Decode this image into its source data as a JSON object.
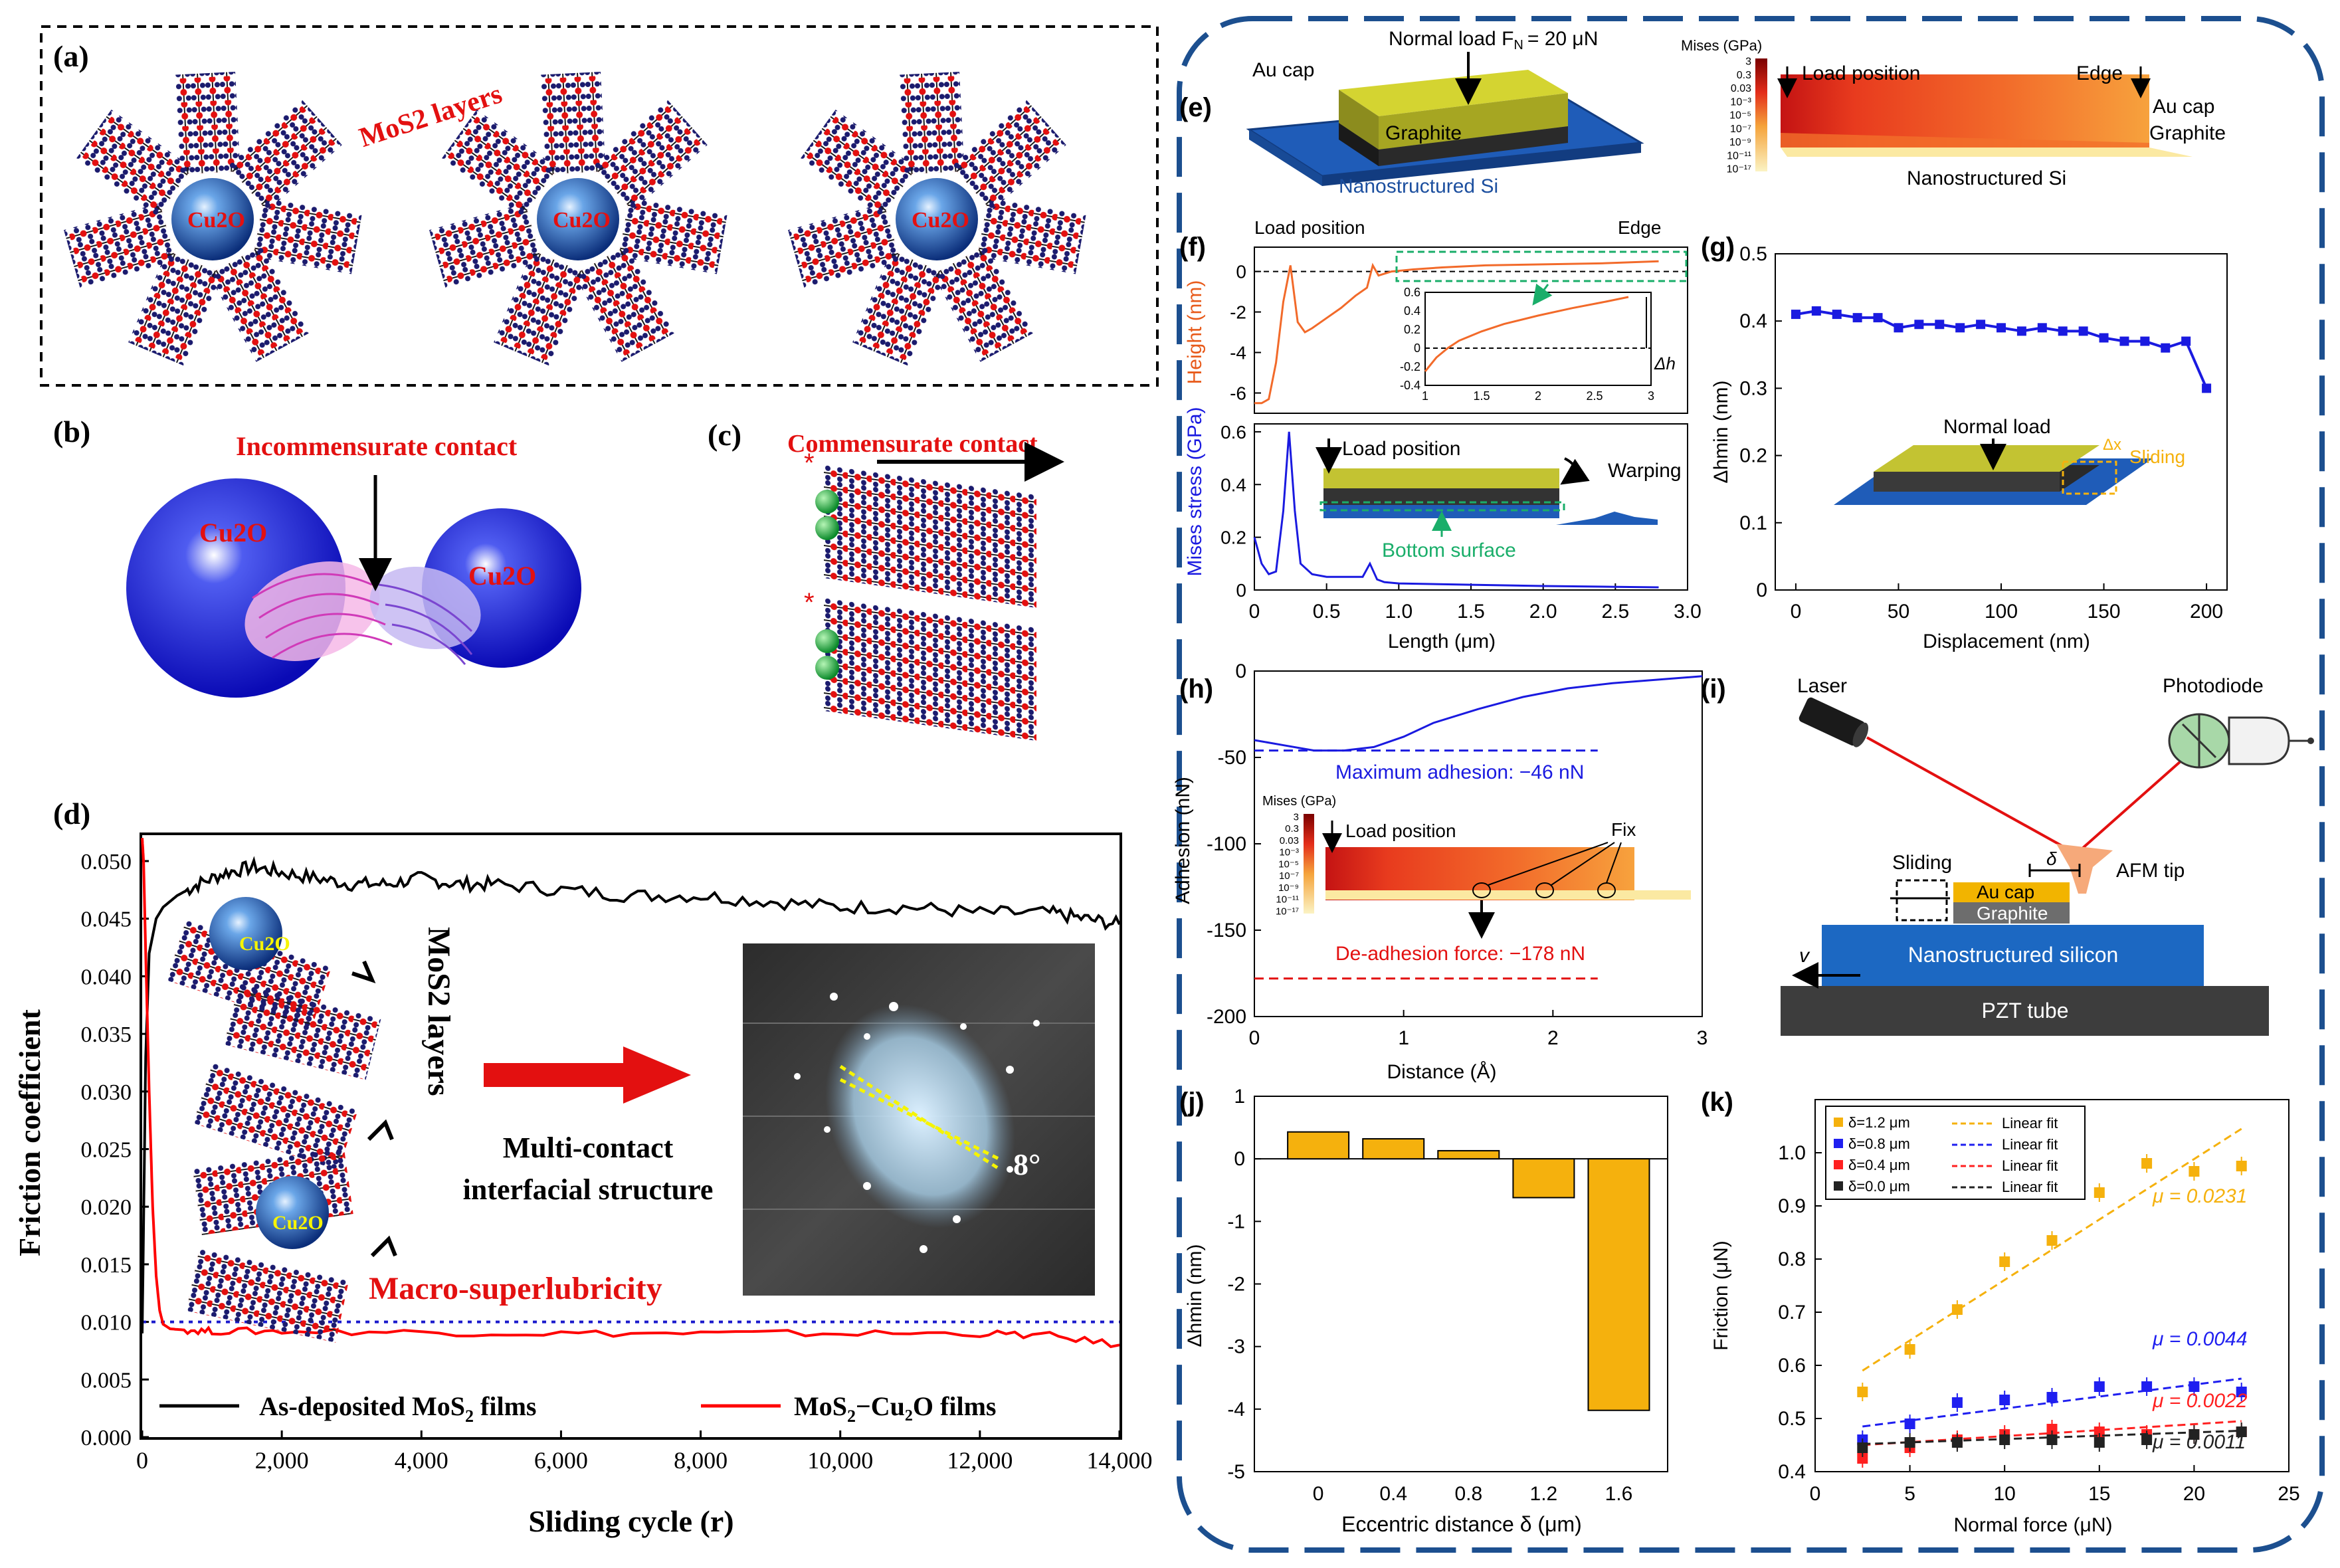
{
  "panel_a": {
    "label": "(a)",
    "mos2_label": "MoS2 layers",
    "cu2o_label": "Cu2O"
  },
  "panel_b": {
    "label": "(b)",
    "title": "Incommensurate contact",
    "cu2o_label": "Cu2O"
  },
  "panel_c": {
    "label": "(c)",
    "title": "Commensurate contact"
  },
  "panel_d": {
    "label": "(d)",
    "mos2_layers_label": "MoS2 layers",
    "cu2o_label": "Cu2O",
    "structure_label_1": "Multi-contact",
    "structure_label_2": "interfacial structure",
    "angle_label": "8°",
    "superlubricity_label": "Macro-superlubricity",
    "colors": {
      "black_series": "#000000",
      "red_series": "#ff0000",
      "ref_line": "#1a1acc",
      "arrow": "#cc0000"
    }
  },
  "panel_e": {
    "label": "(e)",
    "normal_load": "Normal load F",
    "normal_load_sub": "N",
    "normal_load_value": "= 20 μN",
    "au_cap": "Au cap",
    "graphite": "Graphite",
    "substrate": "Nanostructured Si",
    "mises_title": "Mises (GPa)",
    "colorbar_ticks": [
      "3",
      "0.3",
      "0.03",
      "10⁻³",
      "10⁻⁵",
      "10⁻⁷",
      "10⁻⁹",
      "10⁻¹¹",
      "10⁻¹⁷"
    ],
    "load_position": "Load position",
    "edge": "Edge",
    "au_cap_map": "Au cap",
    "graphite_map": "Graphite",
    "substrate_map": "Nanostructured Si"
  },
  "panel_f": {
    "label": "(f)",
    "load_position": "Load position",
    "edge": "Edge",
    "dh_label": "Δh",
    "load_position_inset": "Load position",
    "warping": "Warping",
    "bottom_surface": "Bottom surface"
  },
  "panel_g": {
    "label": "(g)",
    "normal_load": "Normal load",
    "dx": "Δx",
    "sliding": "Sliding"
  },
  "panel_h": {
    "label": "(h)",
    "max_adhesion": "Maximum adhesion: −46 nN",
    "deadhesion": "De-adhesion force: −178 nN",
    "mises_title": "Mises (GPa)",
    "colorbar_ticks": [
      "3",
      "0.3",
      "0.03",
      "10⁻³",
      "10⁻⁵",
      "10⁻⁷",
      "10⁻⁹",
      "10⁻¹¹",
      "10⁻¹⁷"
    ],
    "load_position": "Load position",
    "fix": "Fix"
  },
  "panel_i": {
    "label": "(i)",
    "laser": "Laser",
    "photodiode": "Photodiode",
    "afm_tip": "AFM tip",
    "sliding": "Sliding",
    "delta": "δ",
    "au_cap": "Au cap",
    "graphite": "Graphite",
    "v": "v",
    "substrate": "Nanostructured silicon",
    "pzt": "PZT tube"
  },
  "panel_j": {
    "label": "(j)"
  },
  "panel_k": {
    "label": "(k)",
    "legend_fit": "Linear fit",
    "mu_labels": [
      "μ = 0.0231",
      "μ = 0.0044",
      "μ = 0.0022",
      "μ = 0.0011"
    ]
  },
  "chart_data": [
    {
      "id": "d",
      "type": "line",
      "xlabel": "Sliding cycle (r)",
      "ylabel": "Friction coefficient",
      "xlim": [
        0,
        14000
      ],
      "ylim": [
        0,
        0.05
      ],
      "xticks": [
        "0",
        "2,000",
        "4,000",
        "6,000",
        "8,000",
        "10,000",
        "12,000",
        "14,000"
      ],
      "yticks": [
        "0.000",
        "0.005",
        "0.010",
        "0.015",
        "0.020",
        "0.025",
        "0.030",
        "0.035",
        "0.040",
        "0.045",
        "0.050"
      ],
      "series": [
        {
          "name": "As-deposited MoS2 films",
          "legend_main": "As-deposited MoS",
          "legend_sub": "2",
          "legend_rest": " films",
          "color": "#000000",
          "x": [
            0,
            50,
            100,
            200,
            300,
            500,
            800,
            1200,
            1600,
            2000,
            2500,
            3000,
            3500,
            4000,
            4500,
            5000,
            6000,
            7000,
            8000,
            9000,
            10000,
            11000,
            12000,
            13000,
            13500,
            14000
          ],
          "y": [
            0.009,
            0.033,
            0.042,
            0.045,
            0.046,
            0.047,
            0.048,
            0.049,
            0.0495,
            0.049,
            0.0485,
            0.048,
            0.048,
            0.0485,
            0.048,
            0.048,
            0.0475,
            0.047,
            0.047,
            0.0465,
            0.046,
            0.046,
            0.0455,
            0.0455,
            0.045,
            0.0445
          ]
        },
        {
          "name": "MoS2–Cu2O films",
          "legend_main": "MoS",
          "legend_sub": "2",
          "legend_rest": "−Cu₂O films",
          "color": "#ff0000",
          "x": [
            0,
            20,
            50,
            100,
            150,
            200,
            250,
            300,
            400,
            600,
            1000,
            2000,
            4000,
            6000,
            8000,
            10000,
            12000,
            13000,
            14000
          ],
          "y": [
            0.052,
            0.05,
            0.042,
            0.03,
            0.02,
            0.014,
            0.011,
            0.0098,
            0.0094,
            0.0093,
            0.0092,
            0.0092,
            0.0091,
            0.009,
            0.009,
            0.009,
            0.009,
            0.0088,
            0.008
          ]
        }
      ],
      "reference_line": 0.01
    },
    {
      "id": "f_height",
      "type": "line",
      "ylabel": "Height (nm)",
      "xlim": [
        0,
        3
      ],
      "ylim": [
        -7,
        1.2
      ],
      "yticks": [
        "0",
        "-2",
        "-4",
        "-6"
      ],
      "x": [
        0,
        0.05,
        0.1,
        0.15,
        0.2,
        0.25,
        0.3,
        0.35,
        0.4,
        0.5,
        0.6,
        0.7,
        0.78,
        0.82,
        0.86,
        0.95,
        1.1,
        1.3,
        1.6,
        2.0,
        2.4,
        2.8
      ],
      "y": [
        -6.5,
        -6.5,
        -6.3,
        -4.5,
        -1.5,
        0.3,
        -2.5,
        -3.0,
        -2.8,
        -2.3,
        -1.8,
        -1.2,
        -0.8,
        0.3,
        -0.2,
        0.0,
        0.1,
        0.2,
        0.3,
        0.35,
        0.4,
        0.5
      ]
    },
    {
      "id": "f_height_inset",
      "type": "line",
      "xlim": [
        1,
        3
      ],
      "ylim": [
        -0.4,
        0.6
      ],
      "xticks": [
        "1",
        "1.5",
        "2",
        "2.5",
        "3"
      ],
      "yticks": [
        "0.6",
        "0.4",
        "0.2",
        "0",
        "-0.2",
        "-0.4"
      ],
      "x": [
        1.0,
        1.1,
        1.2,
        1.3,
        1.5,
        1.7,
        2.0,
        2.3,
        2.6,
        2.8
      ],
      "y": [
        -0.25,
        -0.1,
        0.0,
        0.08,
        0.18,
        0.26,
        0.35,
        0.43,
        0.5,
        0.55
      ]
    },
    {
      "id": "f_stress",
      "type": "line",
      "xlabel": "Length (μm)",
      "ylabel": "Mises stress (GPa)",
      "xlim": [
        0,
        3
      ],
      "ylim": [
        0,
        0.63
      ],
      "xticks": [
        "0",
        "0.5",
        "1.0",
        "1.5",
        "2.0",
        "2.5",
        "3.0"
      ],
      "yticks": [
        "0",
        "0.2",
        "0.4",
        "0.6"
      ],
      "x": [
        0,
        0.05,
        0.1,
        0.15,
        0.2,
        0.24,
        0.28,
        0.32,
        0.4,
        0.5,
        0.6,
        0.75,
        0.8,
        0.85,
        0.9,
        1.0,
        1.5,
        2.0,
        2.5,
        2.8
      ],
      "y": [
        0.2,
        0.1,
        0.06,
        0.07,
        0.3,
        0.6,
        0.3,
        0.1,
        0.06,
        0.05,
        0.05,
        0.05,
        0.1,
        0.04,
        0.03,
        0.025,
        0.02,
        0.015,
        0.012,
        0.01
      ]
    },
    {
      "id": "g",
      "type": "line",
      "xlabel": "Displacement (nm)",
      "ylabel": "Δhmin (nm)",
      "xlim": [
        -10,
        210
      ],
      "ylim": [
        0,
        0.5
      ],
      "xticks": [
        "0",
        "50",
        "100",
        "150",
        "200"
      ],
      "yticks": [
        "0",
        "0.1",
        "0.2",
        "0.3",
        "0.4",
        "0.5"
      ],
      "x": [
        0,
        10,
        20,
        30,
        40,
        50,
        60,
        70,
        80,
        90,
        100,
        110,
        120,
        130,
        140,
        150,
        160,
        170,
        180,
        190,
        200
      ],
      "y": [
        0.41,
        0.415,
        0.41,
        0.405,
        0.405,
        0.39,
        0.395,
        0.395,
        0.39,
        0.395,
        0.39,
        0.385,
        0.39,
        0.385,
        0.385,
        0.375,
        0.37,
        0.37,
        0.36,
        0.37,
        0.3
      ]
    },
    {
      "id": "h",
      "type": "line",
      "xlabel": "Distance (Å)",
      "ylabel": "Adhesion (nN)",
      "xlim": [
        0,
        3
      ],
      "ylim": [
        -200,
        0
      ],
      "xticks": [
        "0",
        "1",
        "2",
        "3"
      ],
      "yticks": [
        "0",
        "-50",
        "-100",
        "-150",
        "-200"
      ],
      "x": [
        0,
        0.2,
        0.4,
        0.6,
        0.8,
        1.0,
        1.2,
        1.5,
        1.8,
        2.1,
        2.4,
        2.7,
        3.0
      ],
      "y": [
        -40,
        -43,
        -46,
        -46,
        -44,
        -38,
        -30,
        -22,
        -15,
        -10,
        -7,
        -5,
        -3
      ],
      "max_adhesion": -46,
      "deadhesion_force": -178
    },
    {
      "id": "j",
      "type": "bar",
      "xlabel": "Eccentric distance δ (μm)",
      "ylabel": "Δhmin (nm)",
      "categories": [
        "0",
        "0.4",
        "0.8",
        "1.2",
        "1.6"
      ],
      "values": [
        0.43,
        0.32,
        0.13,
        -0.62,
        -4.02
      ],
      "ylim": [
        -5,
        1
      ],
      "yticks": [
        "1",
        "0",
        "-1",
        "-2",
        "-3",
        "-4",
        "-5"
      ],
      "color": "#f5b10d"
    },
    {
      "id": "k",
      "type": "scatter",
      "xlabel": "Normal force (μN)",
      "ylabel": "Friction (μN)",
      "xlim": [
        0,
        25
      ],
      "ylim": [
        0.4,
        1.1
      ],
      "xticks": [
        "0",
        "5",
        "10",
        "15",
        "20",
        "25"
      ],
      "yticks": [
        "0.4",
        "0.5",
        "0.6",
        "0.7",
        "0.8",
        "0.9",
        "1.0"
      ],
      "x": [
        2.5,
        5,
        7.5,
        10,
        12.5,
        15,
        17.5,
        20,
        22.5
      ],
      "series": [
        {
          "name": "δ=1.2 μm",
          "color": "#f5b10d",
          "y": [
            0.55,
            0.63,
            0.705,
            0.795,
            0.835,
            0.925,
            0.98,
            0.965,
            0.975
          ],
          "fit": [
            0.59,
            1.045
          ],
          "mu": 0.0231
        },
        {
          "name": "δ=0.8 μm",
          "color": "#1f1ff0",
          "y": [
            0.46,
            0.49,
            0.53,
            0.535,
            0.54,
            0.56,
            0.56,
            0.56,
            0.55
          ],
          "fit": [
            0.485,
            0.575
          ],
          "mu": 0.0044
        },
        {
          "name": "δ=0.4 μm",
          "color": "#ff2020",
          "y": [
            0.425,
            0.445,
            0.46,
            0.47,
            0.48,
            0.475,
            0.47,
            0.47,
            0.475
          ],
          "fit": [
            0.45,
            0.495
          ],
          "mu": 0.0022
        },
        {
          "name": "δ=0.0 μm",
          "color": "#222222",
          "y": [
            0.445,
            0.455,
            0.455,
            0.46,
            0.46,
            0.455,
            0.46,
            0.47,
            0.475
          ],
          "fit": [
            0.452,
            0.477
          ],
          "mu": 0.0011
        }
      ]
    }
  ]
}
